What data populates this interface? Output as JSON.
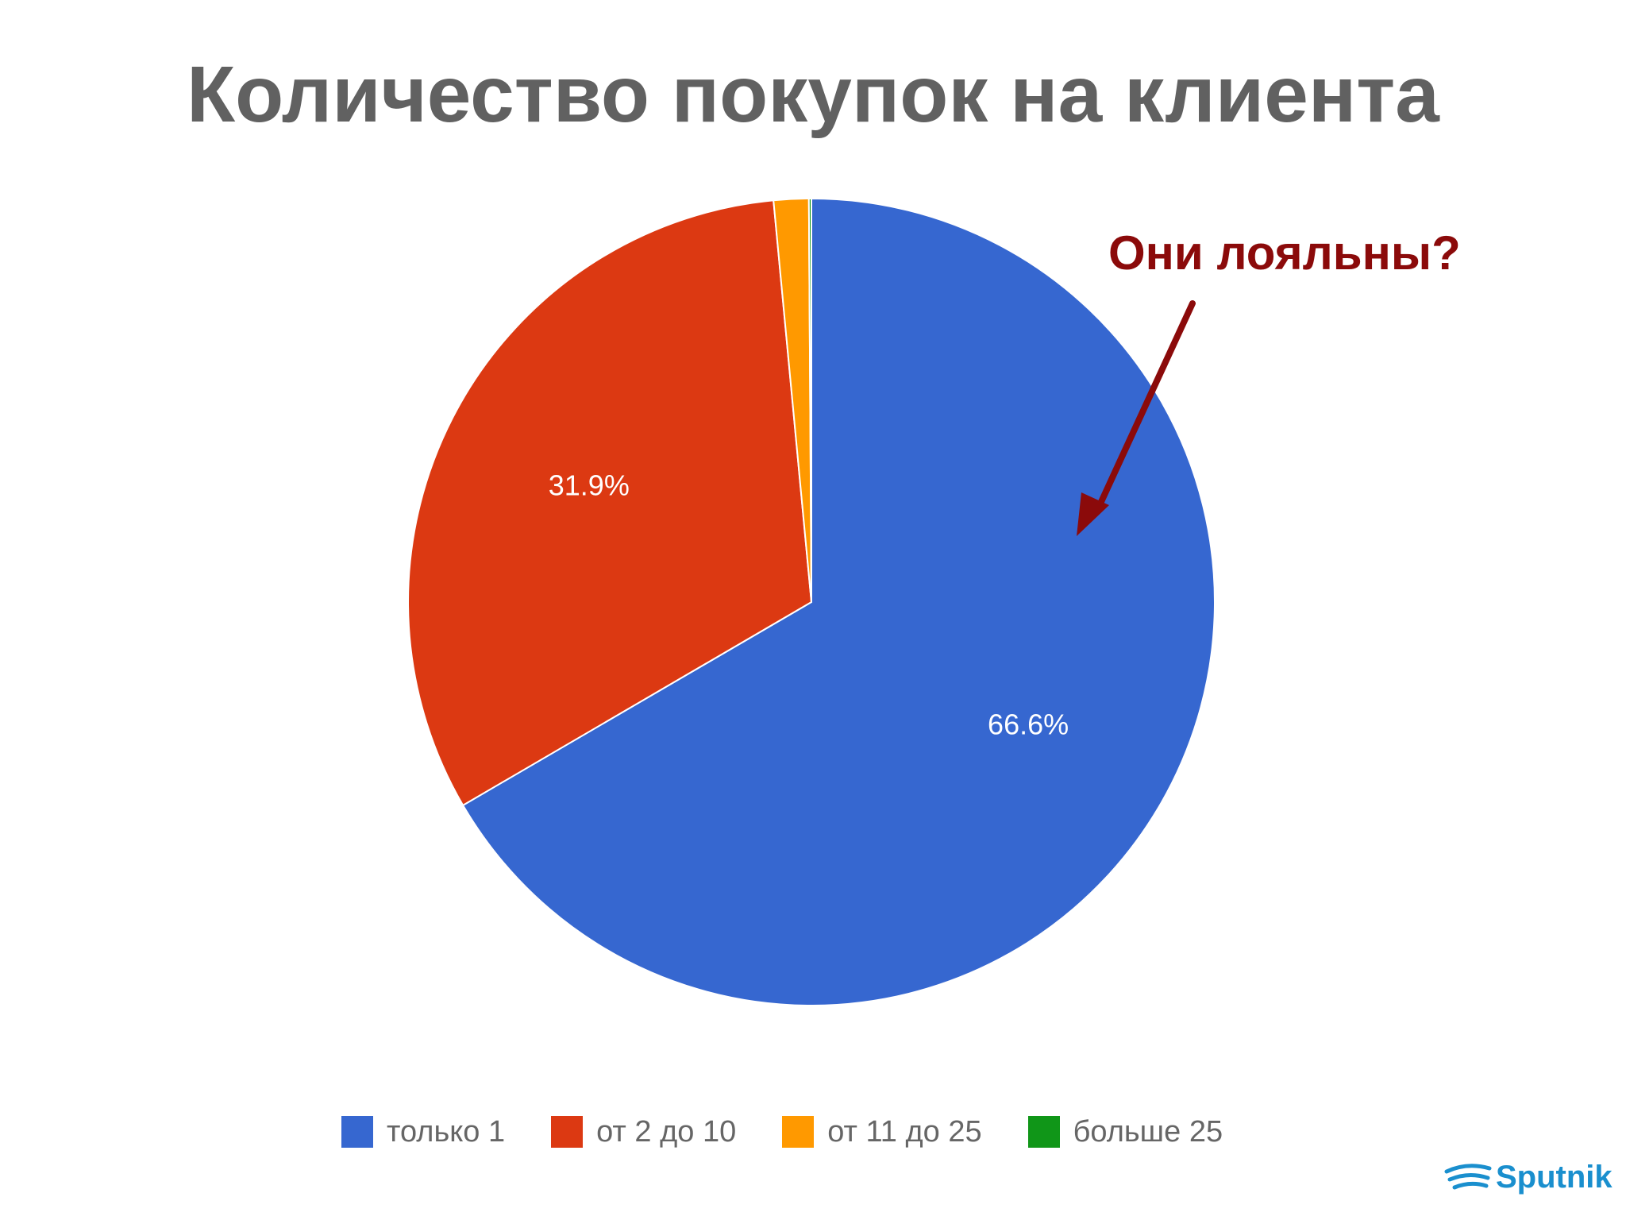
{
  "colors": {
    "title": "#616161",
    "callout": "#8b0a0a",
    "legend_text": "#666666",
    "logo": "#1a8fce"
  },
  "callout": {
    "text": "Они лояльны?",
    "icon": "arrow-down-left-icon"
  },
  "logo": {
    "text": "Sputnik",
    "icon": "sputnik-swoosh-icon"
  },
  "chart_data": {
    "type": "pie",
    "title": "Количество покупок на клиента",
    "start_angle_deg": 0,
    "direction": "clockwise",
    "legend_position": "bottom",
    "slices": [
      {
        "label": "только 1",
        "value": 66.6,
        "display": "66.6%",
        "color": "#3667d0"
      },
      {
        "label": "от 2 до 10",
        "value": 31.9,
        "display": "31.9%",
        "color": "#dc3912"
      },
      {
        "label": "от 11 до 25",
        "value": 1.4,
        "display": "",
        "color": "#ff9900"
      },
      {
        "label": "больше 25",
        "value": 0.1,
        "display": "",
        "color": "#109618"
      }
    ]
  }
}
